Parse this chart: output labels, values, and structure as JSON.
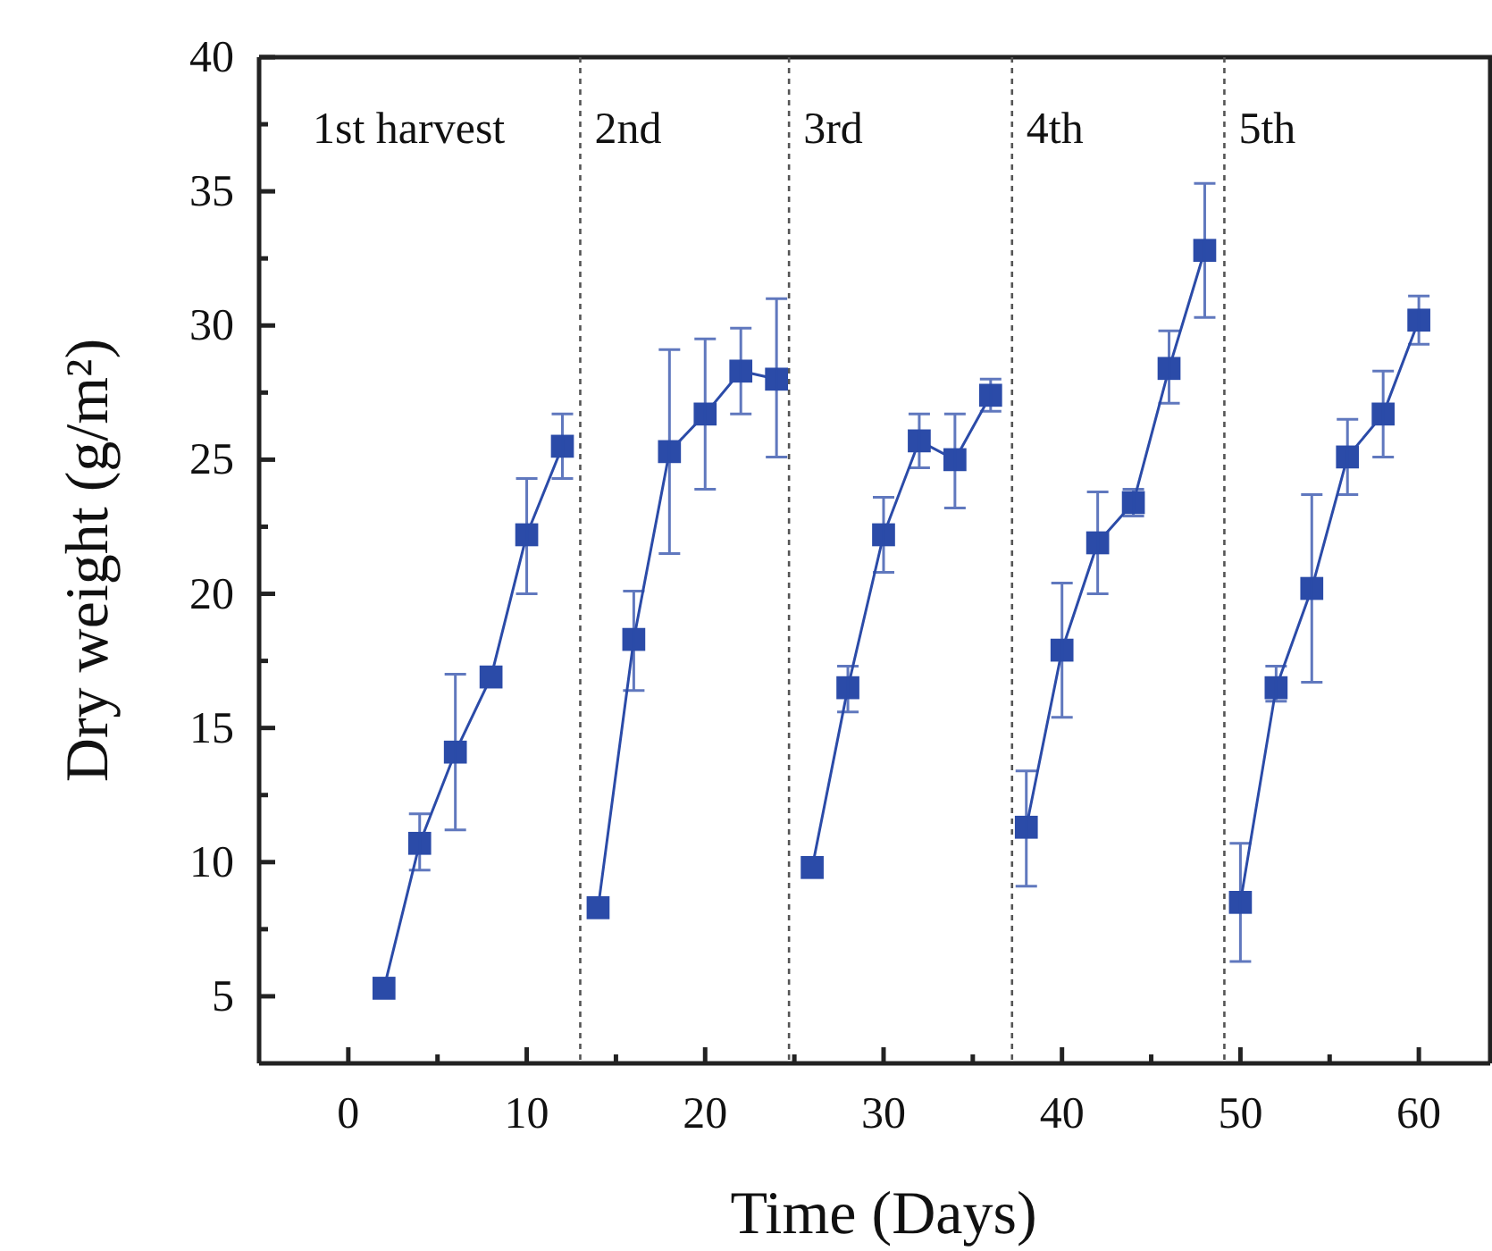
{
  "chart_data": {
    "type": "line",
    "xlabel": "Time (Days)",
    "ylabel": "Dry weight (g/m²)",
    "marker": "square",
    "line_style": "solid",
    "grid": false,
    "xlim": [
      -5,
      64
    ],
    "ylim": [
      2.5,
      40
    ],
    "xticks": [
      0,
      {
        "value": 5,
        "label": null
      },
      10,
      {
        "value": 15,
        "label": null
      },
      20,
      {
        "value": 25,
        "label": null
      },
      30,
      {
        "value": 35,
        "label": null
      },
      40,
      {
        "value": 45,
        "label": null
      },
      50,
      {
        "value": 55,
        "label": null
      },
      60
    ],
    "yticks": [
      5,
      {
        "value": 7.5,
        "label": null
      },
      10,
      {
        "value": 12.5,
        "label": null
      },
      15,
      {
        "value": 17.5,
        "label": null
      },
      20,
      {
        "value": 22.5,
        "label": null
      },
      25,
      {
        "value": 27.5,
        "label": null
      },
      30,
      {
        "value": 32.5,
        "label": null
      },
      35,
      {
        "value": 37.5,
        "label": null
      },
      40
    ],
    "series": [
      {
        "color": "#2b4ba8",
        "x": [
          2,
          4,
          6,
          8,
          10,
          12
        ],
        "values": [
          5.3,
          10.7,
          14.1,
          16.9,
          22.2,
          25.5
        ],
        "errors": [
          null,
          [
            9.7,
            11.8
          ],
          [
            11.2,
            17.0
          ],
          null,
          [
            20.0,
            24.3
          ],
          [
            24.3,
            26.7
          ]
        ]
      },
      {
        "color": "#2b4ba8",
        "x": [
          14,
          16,
          18,
          20,
          22,
          24
        ],
        "values": [
          8.3,
          18.3,
          25.3,
          26.7,
          28.3,
          28.0
        ],
        "errors": [
          null,
          [
            16.4,
            20.1
          ],
          [
            21.5,
            29.1
          ],
          [
            23.9,
            29.5
          ],
          [
            26.7,
            29.9
          ],
          [
            25.1,
            31.0
          ]
        ]
      },
      {
        "color": "#2b4ba8",
        "x": [
          26,
          28,
          30,
          32,
          34,
          36
        ],
        "values": [
          9.8,
          16.5,
          22.2,
          25.7,
          25.0,
          27.4
        ],
        "errors": [
          null,
          [
            15.6,
            17.3
          ],
          [
            20.8,
            23.6
          ],
          [
            24.7,
            26.7
          ],
          [
            23.2,
            26.7
          ],
          [
            26.8,
            28.0
          ]
        ]
      },
      {
        "color": "#2b4ba8",
        "x": [
          38,
          40,
          42,
          44,
          46,
          48
        ],
        "values": [
          11.3,
          17.9,
          21.9,
          23.4,
          28.4,
          32.8
        ],
        "errors": [
          [
            9.1,
            13.4
          ],
          [
            15.4,
            20.4
          ],
          [
            20.0,
            23.8
          ],
          [
            22.9,
            23.9
          ],
          [
            27.1,
            29.8
          ],
          [
            30.3,
            35.3
          ]
        ]
      },
      {
        "color": "#2b4ba8",
        "x": [
          50,
          52,
          54,
          56,
          58,
          60
        ],
        "values": [
          8.5,
          16.5,
          20.2,
          25.1,
          26.7,
          30.2
        ],
        "errors": [
          [
            6.3,
            10.7
          ],
          [
            16.0,
            17.3
          ],
          [
            16.7,
            23.7
          ],
          [
            23.7,
            26.5
          ],
          [
            25.1,
            28.3
          ],
          [
            29.3,
            31.1
          ]
        ]
      }
    ],
    "ref_lines": [
      {
        "axis": "x",
        "value": 13,
        "color": "#555555",
        "line_style": "dotted"
      },
      {
        "axis": "x",
        "value": 24.7,
        "color": "#555555",
        "line_style": "dotted"
      },
      {
        "axis": "x",
        "value": 37.2,
        "color": "#555555",
        "line_style": "dotted"
      },
      {
        "axis": "x",
        "value": 49.1,
        "color": "#555555",
        "line_style": "dotted"
      }
    ],
    "annotations": [
      "1st harvest",
      "2nd",
      "3rd",
      "4th",
      "5th"
    ]
  }
}
